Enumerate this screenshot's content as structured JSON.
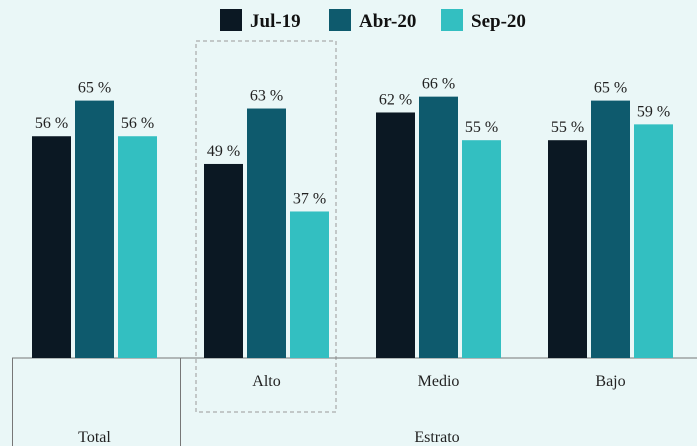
{
  "chart_data": {
    "type": "bar",
    "categories": [
      "Total",
      "Alto",
      "Medio",
      "Bajo"
    ],
    "group_label": "Estrato",
    "series": [
      {
        "name": "Jul-19",
        "color": "#0b1823",
        "values": [
          56,
          49,
          62,
          55
        ],
        "value_labels": [
          "56 %",
          "49 %",
          "62 %",
          "55 %"
        ]
      },
      {
        "name": "Abr-20",
        "color": "#0e5a6d",
        "values": [
          65,
          63,
          66,
          65
        ],
        "value_labels": [
          "65 %",
          "63 %",
          "66 %",
          "65 %"
        ]
      },
      {
        "name": "Sep-20",
        "color": "#33bfc1",
        "values": [
          56,
          37,
          55,
          59
        ],
        "value_labels": [
          "56 %",
          "37 %",
          "55 %",
          "59 %"
        ]
      }
    ]
  }
}
